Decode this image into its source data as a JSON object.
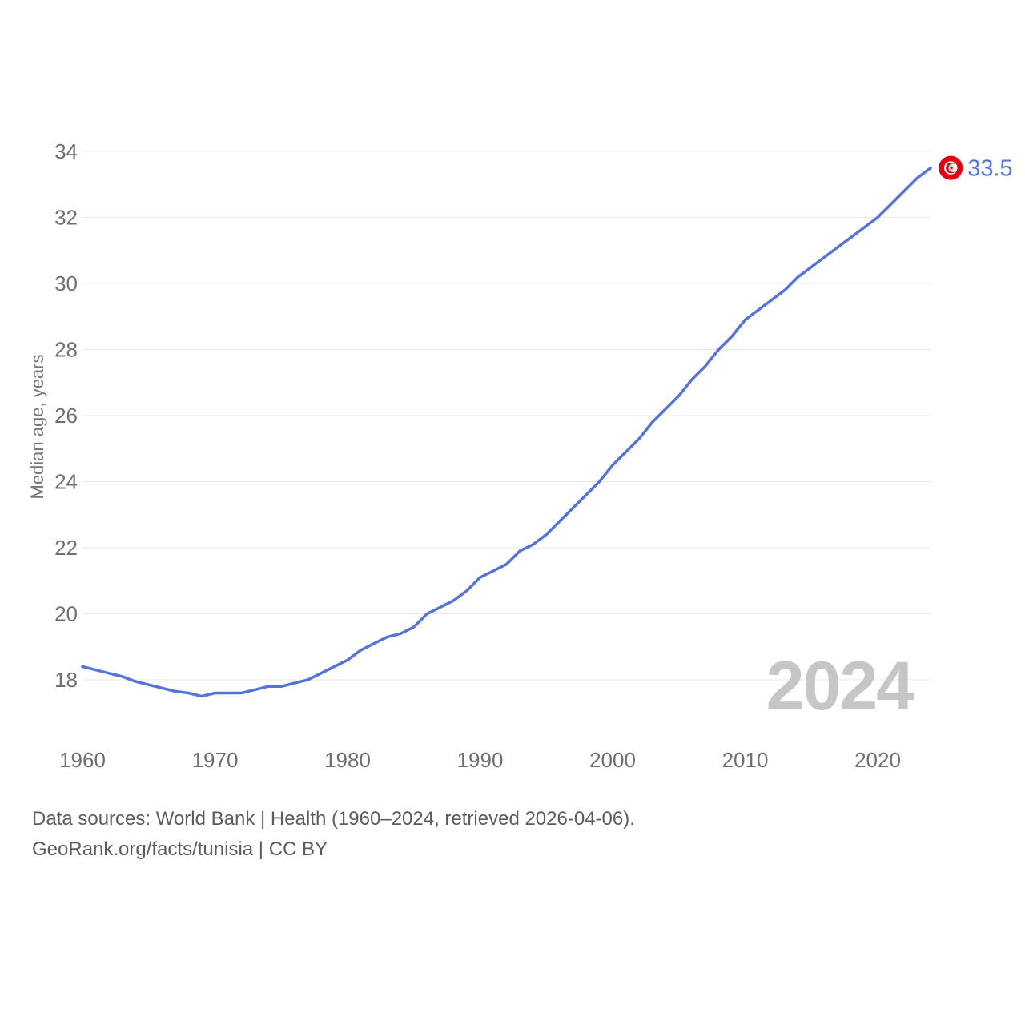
{
  "chart_data": {
    "type": "line",
    "title": "",
    "xlabel": "",
    "ylabel": "Median age, years",
    "x_range": [
      1960,
      2024
    ],
    "ylim": [
      17.2,
      34.6
    ],
    "yticks": [
      18,
      20,
      22,
      24,
      26,
      28,
      30,
      32,
      34
    ],
    "xticks": [
      1960,
      1970,
      1980,
      1990,
      2000,
      2010,
      2020
    ],
    "grid": true,
    "legend": "none",
    "series": [
      {
        "name": "Tunisia median age",
        "x_start": 1960,
        "x_step": 1,
        "values": [
          18.4,
          18.3,
          18.2,
          18.1,
          17.95,
          17.85,
          17.75,
          17.65,
          17.6,
          17.5,
          17.6,
          17.6,
          17.6,
          17.7,
          17.8,
          17.8,
          17.9,
          18.0,
          18.2,
          18.4,
          18.6,
          18.9,
          19.1,
          19.3,
          19.4,
          19.6,
          20.0,
          20.2,
          20.4,
          20.7,
          21.1,
          21.3,
          21.5,
          21.9,
          22.1,
          22.4,
          22.8,
          23.2,
          23.6,
          24.0,
          24.5,
          24.9,
          25.3,
          25.8,
          26.2,
          26.6,
          27.1,
          27.5,
          28.0,
          28.4,
          28.9,
          29.2,
          29.5,
          29.8,
          30.2,
          30.5,
          30.8,
          31.1,
          31.4,
          31.7,
          32.0,
          32.4,
          32.8,
          33.2,
          33.5
        ]
      }
    ],
    "end_label": "33.5",
    "end_marker": "tunisia-flag-roundel"
  },
  "watermark": "2024",
  "sources": {
    "line1": "Data sources: World Bank | Health (1960–2024, retrieved 2026-04-06).",
    "line2": "GeoRank.org/facts/tunisia | CC BY"
  },
  "colors": {
    "line": "#5573DC",
    "end_label_text": "#5277DB",
    "flag_red": "#E70013",
    "flag_white": "#FFFFFF",
    "grid": "#E9E9E9",
    "tick_text": "#707070",
    "axis_title_text": "#757575",
    "watermark_text": "#C6C6C6",
    "source_text": "#5C5C5C"
  }
}
